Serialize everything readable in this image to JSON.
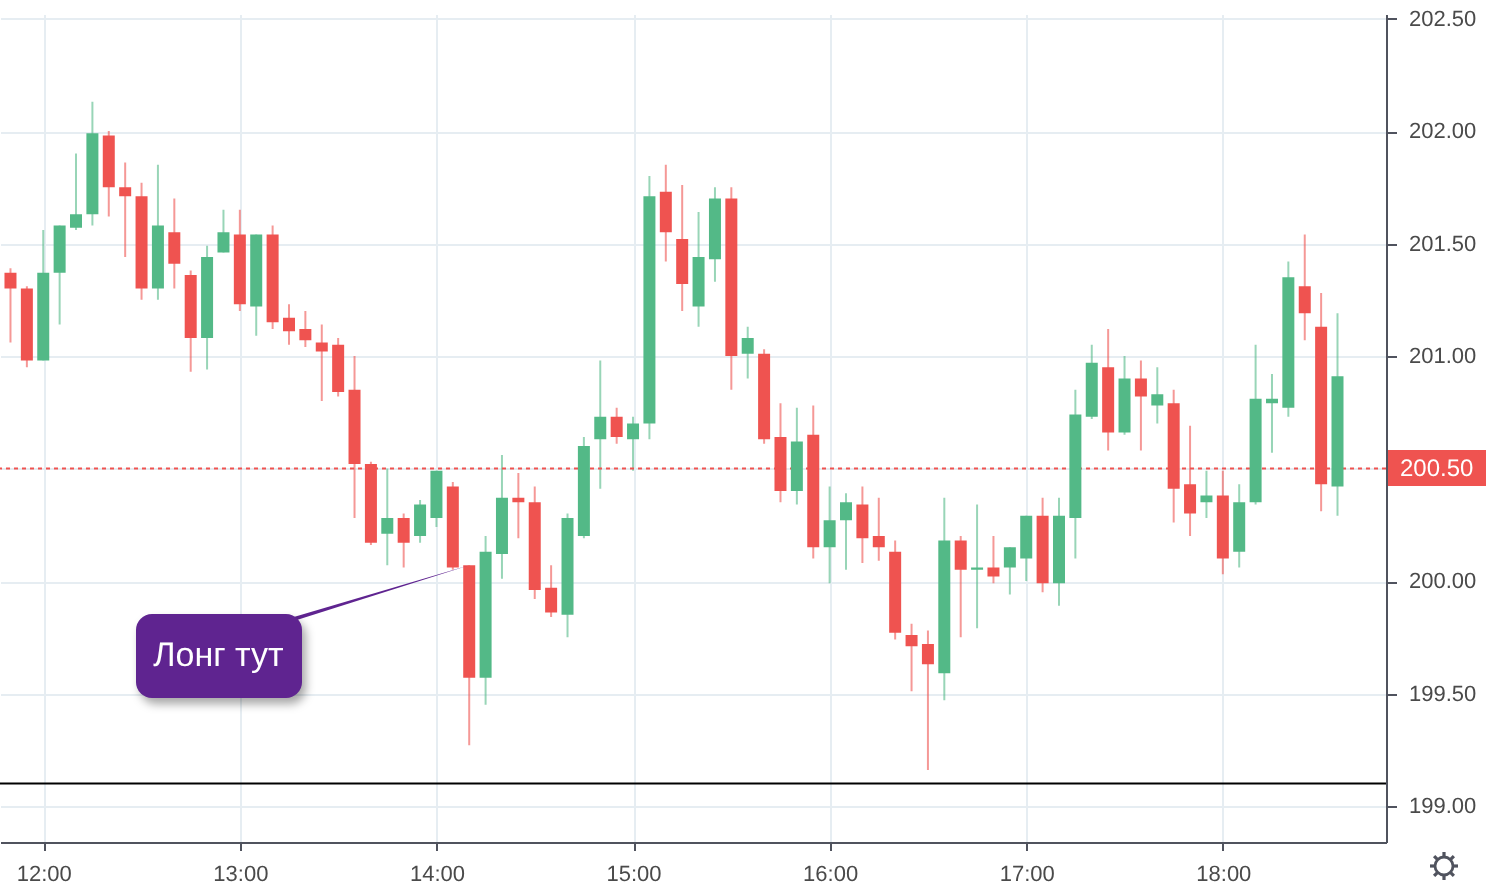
{
  "chart_data": {
    "type": "candlestick",
    "x": [
      11.8333,
      11.9167,
      12,
      12.0833,
      12.1667,
      12.25,
      12.3333,
      12.4167,
      12.5,
      12.5833,
      12.6667,
      12.75,
      12.8333,
      12.9167,
      13,
      13.0833,
      13.1667,
      13.25,
      13.3333,
      13.4167,
      13.5,
      13.5833,
      13.6667,
      13.75,
      13.8333,
      13.9167,
      14,
      14.0833,
      14.1667,
      14.25,
      14.3333,
      14.4167,
      14.5,
      14.5833,
      14.6667,
      14.75,
      14.8333,
      14.9167,
      15,
      15.0833,
      15.1667,
      15.25,
      15.3333,
      15.4167,
      15.5,
      15.5833,
      15.6667,
      15.75,
      15.8333,
      15.9167,
      16,
      16.0833,
      16.1667,
      16.25,
      16.3333,
      16.4167,
      16.5,
      16.5833,
      16.6667,
      16.75,
      16.8333,
      16.9167,
      17,
      17.0833,
      17.1667,
      17.25,
      17.3333,
      17.4167,
      17.5,
      17.5833,
      17.6667,
      17.75,
      17.8333,
      17.9167,
      18,
      18.0833,
      18.1667,
      18.25,
      18.3333,
      18.4167,
      18.5,
      18.5833
    ],
    "ohlc": [
      [
        201.37,
        201.39,
        201.06,
        201.3
      ],
      [
        201.3,
        201.31,
        200.95,
        200.98
      ],
      [
        200.98,
        201.56,
        200.98,
        201.37
      ],
      [
        201.37,
        201.58,
        201.14,
        201.58
      ],
      [
        201.57,
        201.9,
        201.56,
        201.63
      ],
      [
        201.63,
        202.13,
        201.58,
        201.99
      ],
      [
        201.98,
        202.0,
        201.62,
        201.75
      ],
      [
        201.75,
        201.86,
        201.44,
        201.71
      ],
      [
        201.71,
        201.77,
        201.25,
        201.3
      ],
      [
        201.3,
        201.85,
        201.25,
        201.58
      ],
      [
        201.55,
        201.7,
        201.3,
        201.41
      ],
      [
        201.36,
        201.38,
        200.93,
        201.08
      ],
      [
        201.08,
        201.49,
        200.94,
        201.44
      ],
      [
        201.46,
        201.65,
        201.46,
        201.55
      ],
      [
        201.54,
        201.65,
        201.2,
        201.23
      ],
      [
        201.22,
        201.54,
        201.09,
        201.54
      ],
      [
        201.54,
        201.58,
        201.12,
        201.15
      ],
      [
        201.17,
        201.23,
        201.05,
        201.11
      ],
      [
        201.12,
        201.2,
        201.04,
        201.07
      ],
      [
        201.06,
        201.14,
        200.8,
        201.02
      ],
      [
        201.05,
        201.08,
        200.82,
        200.84
      ],
      [
        200.85,
        201.0,
        200.28,
        200.52
      ],
      [
        200.52,
        200.53,
        200.16,
        200.17
      ],
      [
        200.21,
        200.5,
        200.07,
        200.28
      ],
      [
        200.28,
        200.3,
        200.06,
        200.17
      ],
      [
        200.2,
        200.36,
        200.17,
        200.34
      ],
      [
        200.28,
        200.49,
        200.24,
        200.49
      ],
      [
        200.42,
        200.44,
        200.05,
        200.06
      ],
      [
        200.07,
        200.07,
        199.27,
        199.57
      ],
      [
        199.57,
        200.2,
        199.45,
        200.13
      ],
      [
        200.12,
        200.56,
        200.01,
        200.37
      ],
      [
        200.37,
        200.48,
        200.19,
        200.35
      ],
      [
        200.35,
        200.42,
        199.92,
        199.96
      ],
      [
        199.97,
        200.07,
        199.84,
        199.86
      ],
      [
        199.85,
        200.3,
        199.75,
        200.28
      ],
      [
        200.2,
        200.64,
        200.19,
        200.6
      ],
      [
        200.63,
        200.98,
        200.41,
        200.73
      ],
      [
        200.73,
        200.77,
        200.61,
        200.64
      ],
      [
        200.63,
        200.73,
        200.49,
        200.7
      ],
      [
        200.7,
        201.8,
        200.63,
        201.71
      ],
      [
        201.73,
        201.85,
        201.42,
        201.55
      ],
      [
        201.52,
        201.76,
        201.2,
        201.32
      ],
      [
        201.22,
        201.64,
        201.13,
        201.44
      ],
      [
        201.43,
        201.75,
        201.33,
        201.7
      ],
      [
        201.7,
        201.75,
        200.85,
        201.0
      ],
      [
        201.01,
        201.13,
        200.9,
        201.08
      ],
      [
        201.01,
        201.03,
        200.61,
        200.63
      ],
      [
        200.64,
        200.79,
        200.35,
        200.4
      ],
      [
        200.4,
        200.77,
        200.34,
        200.62
      ],
      [
        200.65,
        200.78,
        200.1,
        200.15
      ],
      [
        200.15,
        200.42,
        199.99,
        200.27
      ],
      [
        200.27,
        200.39,
        200.05,
        200.35
      ],
      [
        200.34,
        200.42,
        200.08,
        200.19
      ],
      [
        200.2,
        200.37,
        200.09,
        200.15
      ],
      [
        200.13,
        200.18,
        199.74,
        199.77
      ],
      [
        199.76,
        199.81,
        199.51,
        199.71
      ],
      [
        199.72,
        199.78,
        199.16,
        199.63
      ],
      [
        199.59,
        200.37,
        199.47,
        200.18
      ],
      [
        200.18,
        200.2,
        199.75,
        200.05
      ],
      [
        200.05,
        200.34,
        199.79,
        200.06
      ],
      [
        200.06,
        200.2,
        199.99,
        200.02
      ],
      [
        200.06,
        200.15,
        199.94,
        200.15
      ],
      [
        200.1,
        200.29,
        200.0,
        200.29
      ],
      [
        200.29,
        200.37,
        199.95,
        199.99
      ],
      [
        199.99,
        200.37,
        199.89,
        200.29
      ],
      [
        200.28,
        200.85,
        200.1,
        200.74
      ],
      [
        200.73,
        201.05,
        200.72,
        200.97
      ],
      [
        200.95,
        201.12,
        200.58,
        200.66
      ],
      [
        200.66,
        201.0,
        200.65,
        200.9
      ],
      [
        200.9,
        200.98,
        200.58,
        200.82
      ],
      [
        200.78,
        200.95,
        200.7,
        200.83
      ],
      [
        200.79,
        200.85,
        200.26,
        200.41
      ],
      [
        200.43,
        200.69,
        200.2,
        200.3
      ],
      [
        200.35,
        200.49,
        200.28,
        200.38
      ],
      [
        200.38,
        200.49,
        200.03,
        200.1
      ],
      [
        200.13,
        200.43,
        200.06,
        200.35
      ],
      [
        200.35,
        201.05,
        200.34,
        200.81
      ],
      [
        200.79,
        200.92,
        200.57,
        200.81
      ],
      [
        200.77,
        201.42,
        200.73,
        201.35
      ],
      [
        201.31,
        201.54,
        201.07,
        201.19
      ],
      [
        201.13,
        201.28,
        200.31,
        200.43
      ],
      [
        200.42,
        201.19,
        200.29,
        200.91
      ]
    ],
    "colors": [
      "#ef5350",
      "#ef5350",
      "#53b987",
      "#53b987",
      "#53b987",
      "#53b987",
      "#ef5350",
      "#ef5350",
      "#ef5350",
      "#53b987",
      "#ef5350",
      "#ef5350",
      "#53b987",
      "#53b987",
      "#ef5350",
      "#53b987",
      "#ef5350",
      "#ef5350",
      "#ef5350",
      "#ef5350",
      "#ef5350",
      "#ef5350",
      "#ef5350",
      "#53b987",
      "#ef5350",
      "#53b987",
      "#53b987",
      "#ef5350",
      "#ef5350",
      "#53b987",
      "#53b987",
      "#ef5350",
      "#ef5350",
      "#ef5350",
      "#53b987",
      "#53b987",
      "#53b987",
      "#ef5350",
      "#53b987",
      "#53b987",
      "#ef5350",
      "#ef5350",
      "#53b987",
      "#53b987",
      "#ef5350",
      "#53b987",
      "#ef5350",
      "#ef5350",
      "#53b987",
      "#ef5350",
      "#53b987",
      "#53b987",
      "#ef5350",
      "#ef5350",
      "#ef5350",
      "#ef5350",
      "#ef5350",
      "#53b987",
      "#ef5350",
      "#53b987",
      "#ef5350",
      "#53b987",
      "#53b987",
      "#ef5350",
      "#53b987",
      "#53b987",
      "#53b987",
      "#ef5350",
      "#53b987",
      "#ef5350",
      "#53b987",
      "#ef5350",
      "#ef5350",
      "#53b987",
      "#ef5350",
      "#53b987",
      "#53b987",
      "#53b987",
      "#53b987",
      "#ef5350",
      "#ef5350",
      "#53b987"
    ],
    "xlim": [
      11.78,
      18.83
    ],
    "xticks": [
      {
        "value": 12,
        "label": "12:00"
      },
      {
        "value": 13,
        "label": "13:00"
      },
      {
        "value": 14,
        "label": "14:00"
      },
      {
        "value": 15,
        "label": "15:00"
      },
      {
        "value": 16,
        "label": "16:00"
      },
      {
        "value": 17,
        "label": "17:00"
      },
      {
        "value": 18,
        "label": "18:00"
      }
    ],
    "ylim": [
      198.84,
      202.52
    ],
    "yticks": [
      {
        "value": 199,
        "label": "199.00"
      },
      {
        "value": 199.5,
        "label": "199.50"
      },
      {
        "value": 200,
        "label": "200.00"
      },
      {
        "value": 200.5,
        "label": null
      },
      {
        "value": 201,
        "label": "201.00"
      },
      {
        "value": 201.5,
        "label": "201.50"
      },
      {
        "value": 202,
        "label": "202.00"
      },
      {
        "value": 202.5,
        "label": "202.50"
      }
    ],
    "grid": true,
    "ref_lines": [
      {
        "axis": "y",
        "value": 200.5,
        "label": "200.50",
        "color": "#ef5350",
        "line_style": "dotted"
      },
      {
        "axis": "y",
        "value": 199.1,
        "color": "#000000",
        "line_style": "solid"
      }
    ],
    "annotations": [
      {
        "text": "Лонг тут",
        "x": 14.1667,
        "y": 200.07
      }
    ]
  }
}
